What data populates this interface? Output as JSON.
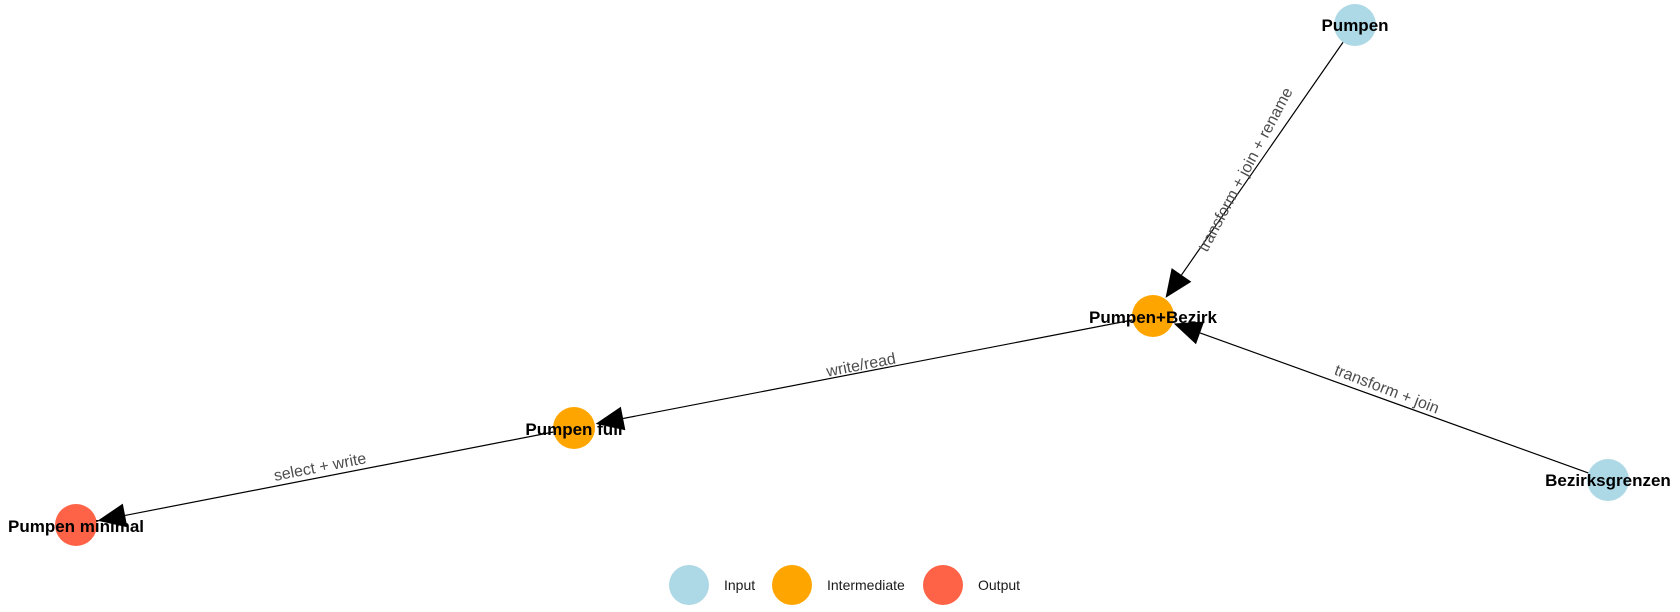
{
  "diagram": {
    "nodes": [
      {
        "id": "pumpen",
        "label": "Pumpen",
        "group": "input"
      },
      {
        "id": "bezirksgrenzen",
        "label": "Bezirksgrenzen",
        "group": "input"
      },
      {
        "id": "pumpen_bezirk",
        "label": "Pumpen+Bezirk",
        "group": "intermediate"
      },
      {
        "id": "pumpen_full",
        "label": "Pumpen full",
        "group": "intermediate"
      },
      {
        "id": "pumpen_minimal",
        "label": "Pumpen minimal",
        "group": "output"
      }
    ],
    "edges": [
      {
        "from": "pumpen",
        "to": "pumpen_bezirk",
        "label": "transform + join + rename"
      },
      {
        "from": "bezirksgrenzen",
        "to": "pumpen_bezirk",
        "label": "transform + join"
      },
      {
        "from": "pumpen_bezirk",
        "to": "pumpen_full",
        "label": "write/read"
      },
      {
        "from": "pumpen_full",
        "to": "pumpen_minimal",
        "label": "select + write"
      }
    ],
    "legend": [
      {
        "group": "input",
        "label": "Input"
      },
      {
        "group": "intermediate",
        "label": "Intermediate"
      },
      {
        "group": "output",
        "label": "Output"
      }
    ],
    "colors": {
      "input": "#add8e6",
      "intermediate": "#ffa500",
      "output": "#ff6347",
      "edge": "#000000"
    }
  }
}
